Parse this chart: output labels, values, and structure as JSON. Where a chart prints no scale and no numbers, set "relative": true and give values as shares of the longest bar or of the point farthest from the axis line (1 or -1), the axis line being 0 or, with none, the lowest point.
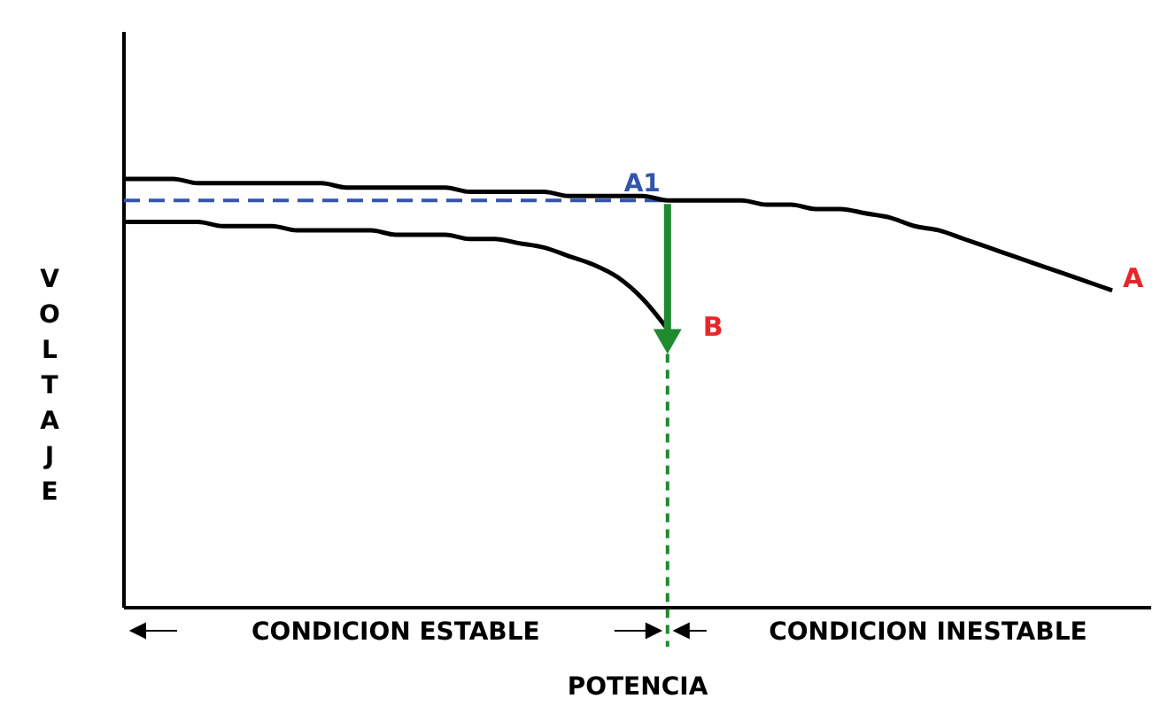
{
  "chart_data": {
    "type": "line",
    "relative": true,
    "xlabel": "POTENCIA",
    "ylabel": "VOLTAJE",
    "categories": [
      null,
      null,
      null,
      null,
      null,
      null,
      null,
      null,
      null,
      null,
      null,
      null,
      null,
      null,
      null,
      null,
      null,
      null,
      null,
      null,
      null,
      null,
      null,
      null,
      null,
      null,
      null,
      null,
      null,
      null,
      null,
      null,
      null,
      null,
      null,
      null,
      null,
      null,
      null,
      null,
      null
    ],
    "series": [
      {
        "name": "A",
        "color": "#000000",
        "values": [
          1.0,
          1.0,
          1.0,
          0.99,
          0.99,
          0.99,
          0.99,
          0.99,
          0.99,
          0.98,
          0.98,
          0.98,
          0.98,
          0.98,
          0.97,
          0.97,
          0.97,
          0.97,
          0.96,
          0.96,
          0.96,
          0.96,
          0.95,
          0.95,
          0.95,
          0.95,
          0.94,
          0.94,
          0.93,
          0.93,
          0.92,
          0.91,
          0.89,
          0.88,
          0.86,
          0.84,
          0.82,
          0.8,
          0.78,
          0.76,
          0.74
        ]
      },
      {
        "name": "B",
        "color": "#000000",
        "values": [
          0.9,
          0.9,
          0.9,
          0.9,
          0.89,
          0.89,
          0.89,
          0.88,
          0.88,
          0.88,
          0.88,
          0.87,
          0.87,
          0.87,
          0.86,
          0.86,
          0.85,
          0.84,
          0.82,
          0.8,
          0.77,
          0.72,
          0.65,
          null,
          null,
          null,
          null,
          null,
          null,
          null,
          null,
          null,
          null,
          null,
          null,
          null,
          null,
          null,
          null,
          null,
          null
        ]
      }
    ],
    "ref_lines": [
      {
        "axis": "y",
        "value": 0.95,
        "label": "A1",
        "color": "#3355aa",
        "line_style": "dashed"
      }
    ],
    "annotations": [
      "CONDICION ESTABLE",
      "CONDICION INESTABLE"
    ],
    "line_style": "solid",
    "marker": "none"
  }
}
